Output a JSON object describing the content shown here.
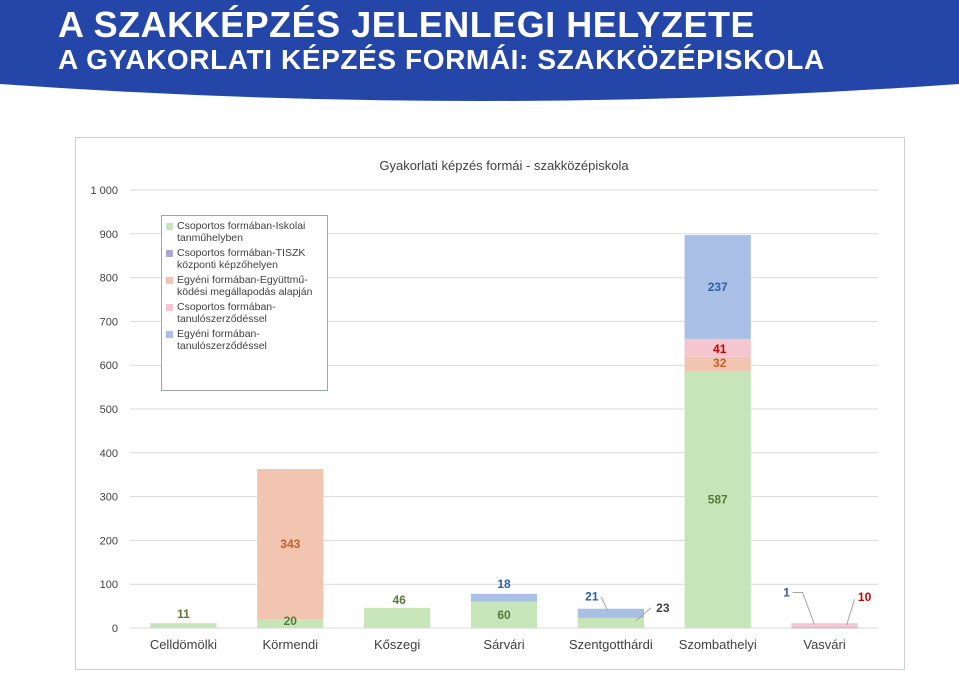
{
  "header": {
    "title_line1": "A SZAKKÉPZÉS JELENLEGI HELYZETE",
    "title_line2": "A GYAKORLATI KÉPZÉS FORMÁI: SZAKKÖZÉPISKOLA",
    "banner_color": "#2346a8"
  },
  "chart_data": {
    "type": "bar",
    "stacked": true,
    "title": "Gyakorlati képzés formái - szakközépiskola",
    "xlabel": "",
    "ylabel": "",
    "ylim": [
      0,
      1000
    ],
    "yticks": [
      "0",
      "100",
      "200",
      "300",
      "400",
      "500",
      "600",
      "700",
      "800",
      "900",
      "1 000"
    ],
    "grid": true,
    "legend_position": "top-left",
    "categories": [
      "Celldömölki",
      "Körmendi",
      "Kőszegi",
      "Sárvári",
      "Szentgotthárdi",
      "Szombathelyi",
      "Vasvári"
    ],
    "series": [
      {
        "name": "Csoportos formában-Iskolai\ntanműhelyben",
        "color": "#c6e5b8",
        "values": [
          11,
          20,
          46,
          60,
          23,
          587,
          0
        ]
      },
      {
        "name": "Csoportos formában-TISZK\nközponti képzőhelyen",
        "color": "#b0a6d6",
        "values": [
          0,
          0,
          0,
          0,
          0,
          0,
          1
        ]
      },
      {
        "name": "Egyéni formában-Együttmű-\nködési megállapodás alapján",
        "color": "#f2c5b0",
        "values": [
          0,
          343,
          0,
          0,
          0,
          32,
          0
        ]
      },
      {
        "name": "Csoportos formában-\ntanulószerződéssel",
        "color": "#f5c6cf",
        "values": [
          0,
          0,
          0,
          0,
          0,
          41,
          10
        ]
      },
      {
        "name": "Egyéni formában-\ntanulószerződéssel",
        "color": "#a9bfe6",
        "values": [
          0,
          0,
          0,
          18,
          21,
          237,
          0
        ]
      }
    ],
    "data_labels": [
      {
        "category": "Celldömölki",
        "series": 0,
        "text": "11",
        "color": "#5a7a3a"
      },
      {
        "category": "Körmendi",
        "series": 0,
        "text": "20",
        "color": "#5a7a3a"
      },
      {
        "category": "Körmendi",
        "series": 2,
        "text": "343",
        "color": "#c0622b"
      },
      {
        "category": "Kőszegi",
        "series": 0,
        "text": "46",
        "color": "#5a7a3a"
      },
      {
        "category": "Sárvári",
        "series": 0,
        "text": "60",
        "color": "#5a7a3a"
      },
      {
        "category": "Sárvári",
        "series": 4,
        "text": "18",
        "color": "#2e5fa8"
      },
      {
        "category": "Szentgotthárdi",
        "series": 4,
        "text": "21",
        "color": "#2e5fa8"
      },
      {
        "category": "Szentgotthárdi",
        "series": 0,
        "text": "23",
        "color": "#404040"
      },
      {
        "category": "Szombathelyi",
        "series": 0,
        "text": "587",
        "color": "#5a7a3a"
      },
      {
        "category": "Szombathelyi",
        "series": 2,
        "text": "32",
        "color": "#c0622b"
      },
      {
        "category": "Szombathelyi",
        "series": 3,
        "text": "41",
        "color": "#cc0000"
      },
      {
        "category": "Szombathelyi",
        "series": 4,
        "text": "237",
        "color": "#2e5fa8"
      },
      {
        "category": "Vasvári",
        "series": 1,
        "text": "1",
        "color": "#2e5fa8"
      },
      {
        "category": "Vasvári",
        "series": 3,
        "text": "10",
        "color": "#cc0000"
      }
    ]
  }
}
